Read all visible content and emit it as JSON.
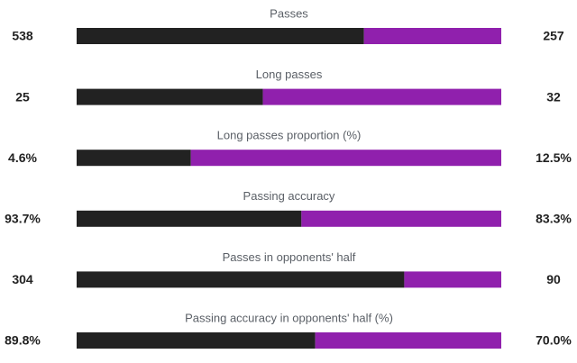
{
  "chart_data": {
    "type": "split-bar",
    "categories": [
      "Passes",
      "Long passes",
      "Long passes proportion (%)",
      "Passing accuracy",
      "Passes in opponents' half",
      "Passing accuracy in opponents' half (%)"
    ],
    "series": [
      {
        "color": "#222222",
        "values": [
          538,
          25,
          4.6,
          93.7,
          304,
          89.8
        ],
        "value_labels": [
          "538",
          "25",
          "4.6%",
          "93.7%",
          "304",
          "89.8%"
        ]
      },
      {
        "color": "#9020ad",
        "values": [
          257,
          32,
          12.5,
          83.3,
          90,
          70.0
        ],
        "value_labels": [
          "257",
          "32",
          "12.5%",
          "83.3%",
          "90",
          "70.0%"
        ]
      }
    ]
  }
}
